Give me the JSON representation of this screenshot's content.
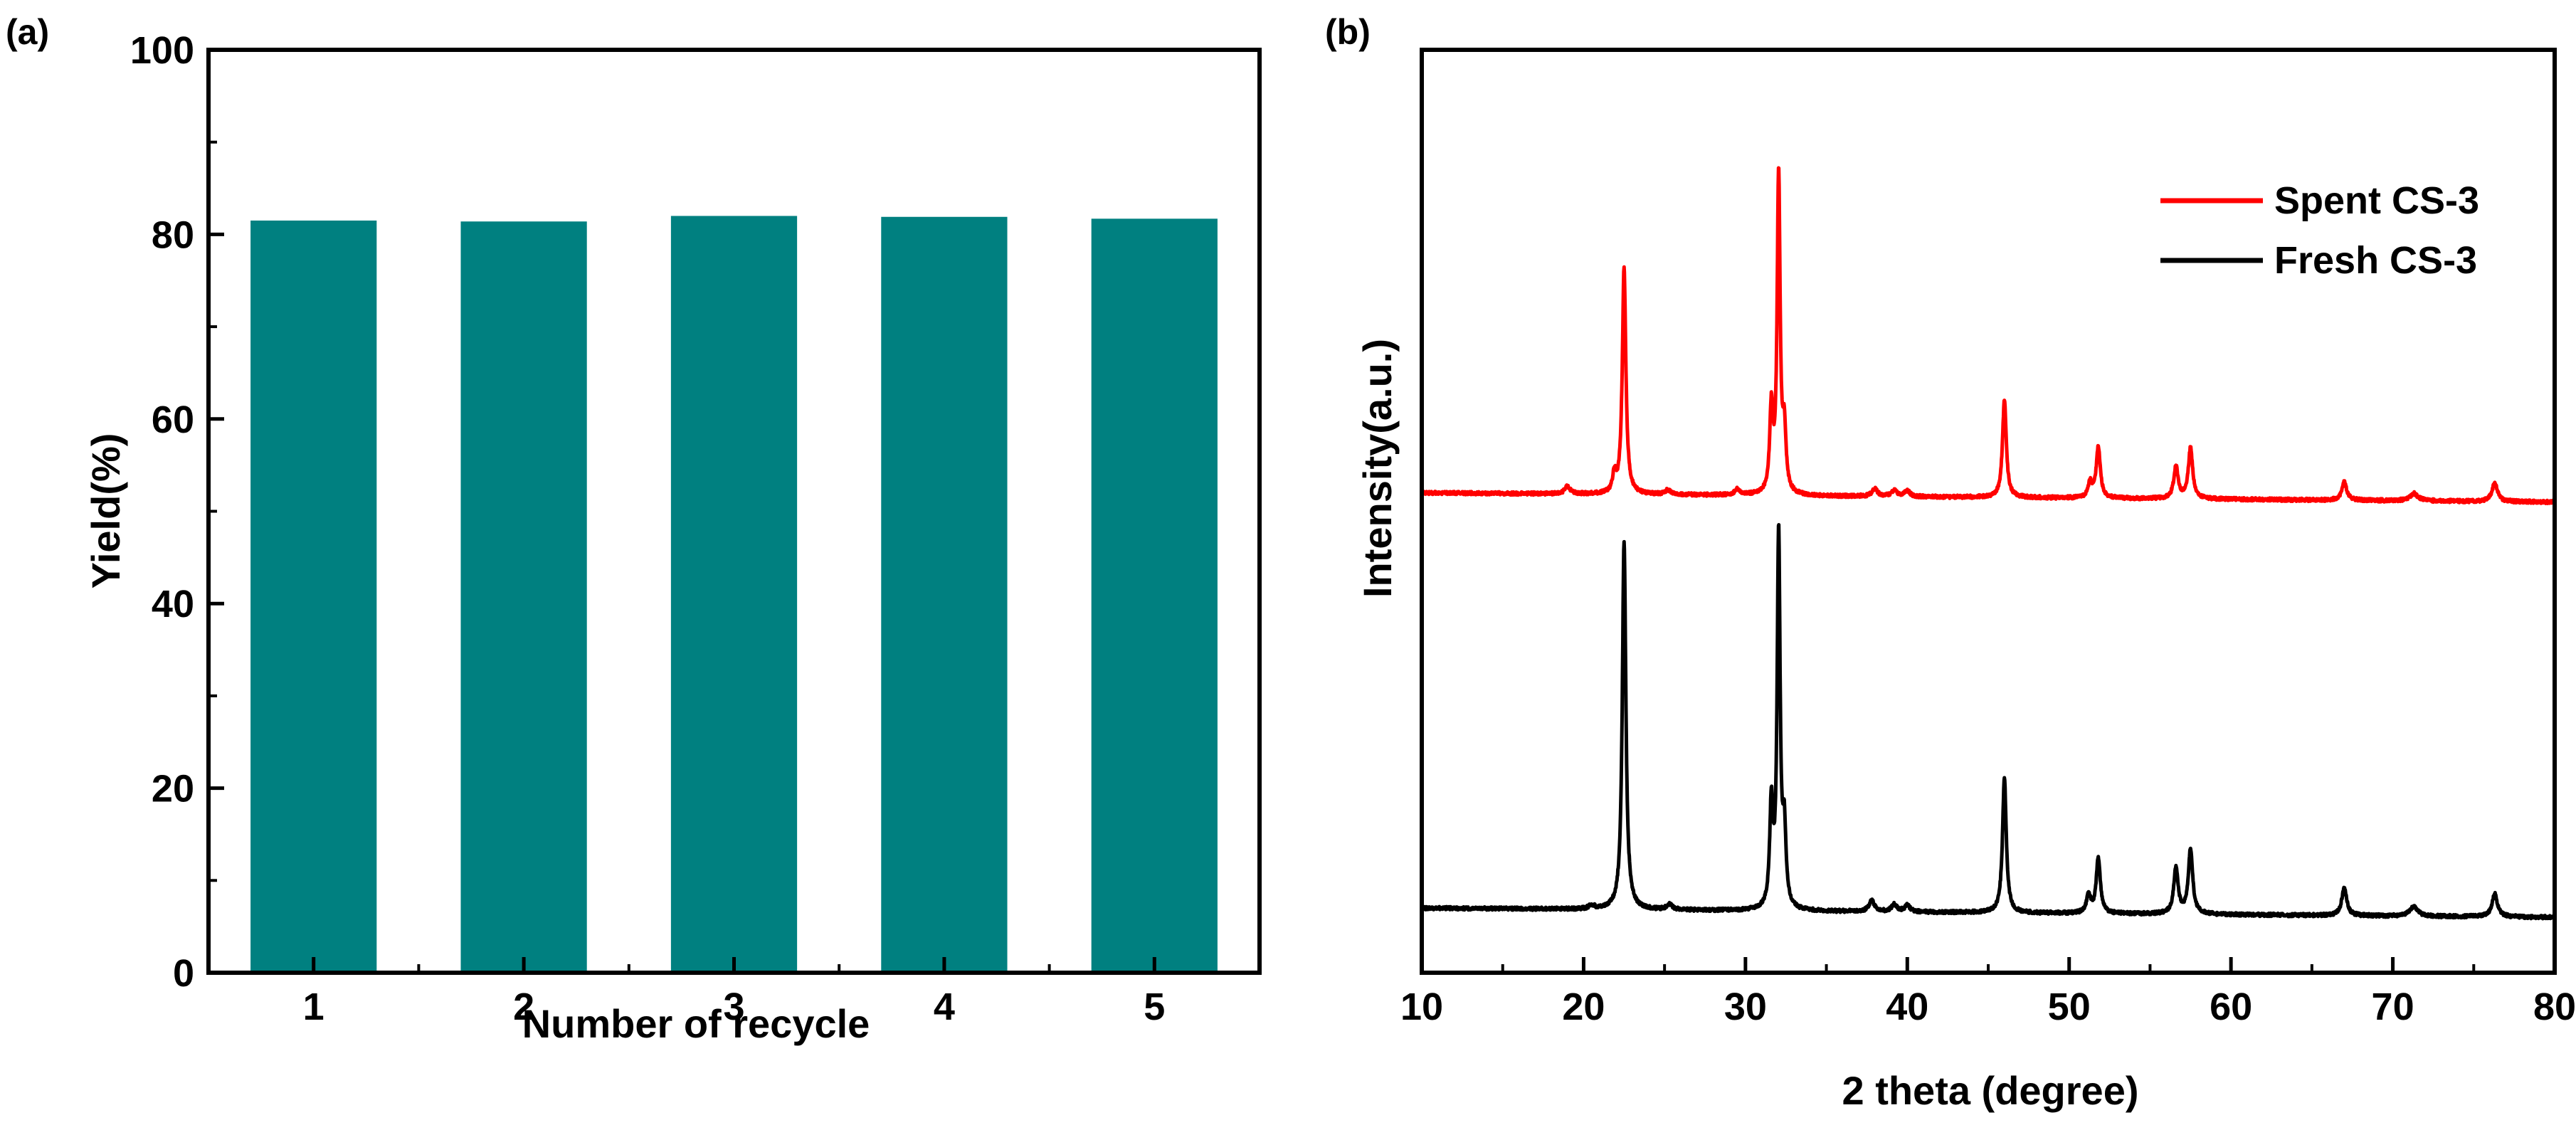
{
  "chart_data": [
    {
      "panel_label": "(a)",
      "type": "bar",
      "categories": [
        "1",
        "2",
        "3",
        "4",
        "5"
      ],
      "values": [
        81.5,
        81.4,
        82.0,
        81.9,
        81.7
      ],
      "xlabel": "Number of recycle",
      "ylabel": "Yield(%)",
      "ylim": [
        0,
        100
      ],
      "xlim": [
        0.5,
        5.5
      ],
      "yticks": [
        "0",
        "20",
        "40",
        "60",
        "80",
        "100"
      ],
      "bar_color": "#008080",
      "grid": false
    },
    {
      "panel_label": "(b)",
      "type": "line",
      "xlabel": "2 theta (degree)",
      "ylabel": "Intensity(a.u.)",
      "xlim": [
        10,
        80
      ],
      "xticks": [
        "10",
        "20",
        "30",
        "40",
        "50",
        "60",
        "70",
        "80"
      ],
      "legend_position": "top-right",
      "grid": false,
      "series": [
        {
          "name": "Spent CS-3",
          "color": "#ff0000",
          "baseline_start": 52,
          "baseline_end": 51,
          "peaks": [
            [
              19.0,
              0.8,
              0.2
            ],
            [
              21.9,
              2.0,
              0.12
            ],
            [
              22.5,
              24.5,
              0.13
            ],
            [
              25.2,
              0.5,
              0.2
            ],
            [
              29.5,
              0.6,
              0.2
            ],
            [
              31.6,
              9.0,
              0.12
            ],
            [
              32.05,
              34.5,
              0.11
            ],
            [
              32.4,
              6.5,
              0.12
            ],
            [
              38.0,
              0.8,
              0.2
            ],
            [
              39.2,
              0.7,
              0.2
            ],
            [
              40.0,
              0.6,
              0.2
            ],
            [
              46.0,
              10.5,
              0.14
            ],
            [
              51.3,
              1.6,
              0.15
            ],
            [
              51.8,
              5.5,
              0.15
            ],
            [
              56.6,
              3.5,
              0.16
            ],
            [
              57.5,
              5.5,
              0.16
            ],
            [
              67.0,
              2.0,
              0.18
            ],
            [
              71.3,
              0.8,
              0.3
            ],
            [
              76.3,
              2.0,
              0.2
            ]
          ]
        },
        {
          "name": "Fresh CS-3",
          "color": "#000000",
          "baseline_start": 7,
          "baseline_end": 6,
          "peaks": [
            [
              20.5,
              0.4,
              0.2
            ],
            [
              22.5,
              40.0,
              0.13
            ],
            [
              25.3,
              0.6,
              0.2
            ],
            [
              31.6,
              11.0,
              0.12
            ],
            [
              32.05,
              40.5,
              0.11
            ],
            [
              32.4,
              8.0,
              0.12
            ],
            [
              37.8,
              1.2,
              0.2
            ],
            [
              39.2,
              0.8,
              0.2
            ],
            [
              40.0,
              0.7,
              0.2
            ],
            [
              46.0,
              14.5,
              0.14
            ],
            [
              51.2,
              2.0,
              0.15
            ],
            [
              51.8,
              6.0,
              0.15
            ],
            [
              56.6,
              5.0,
              0.16
            ],
            [
              57.5,
              7.0,
              0.16
            ],
            [
              67.0,
              3.0,
              0.18
            ],
            [
              71.3,
              1.0,
              0.3
            ],
            [
              76.3,
              2.5,
              0.2
            ]
          ]
        }
      ]
    }
  ]
}
